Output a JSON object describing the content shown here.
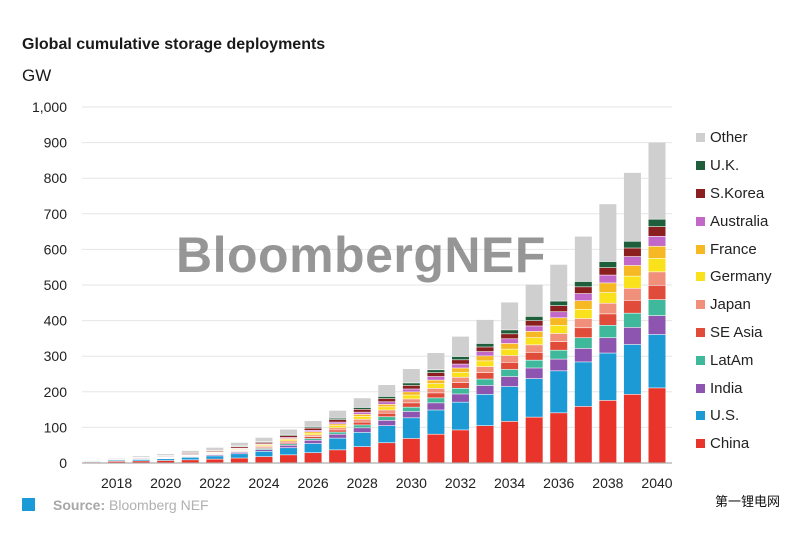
{
  "title": "Global cumulative storage deployments",
  "unit": "GW",
  "watermark": "BloombergNEF",
  "source": {
    "label": "Source:",
    "text": "Bloomberg NEF"
  },
  "footer_mark": "第一锂电网",
  "chart_data": {
    "type": "bar",
    "stacked": true,
    "title": "Global cumulative storage deployments",
    "ylabel": "GW",
    "xlabel": "",
    "ylim": [
      0,
      1000
    ],
    "yticks": [
      0,
      100,
      200,
      300,
      400,
      500,
      600,
      700,
      800,
      900,
      1000
    ],
    "ytick_labels": [
      "0",
      "100",
      "200",
      "300",
      "400",
      "500",
      "600",
      "700",
      "800",
      "900",
      "1,000"
    ],
    "xtick_labels": [
      "2018",
      "2020",
      "2022",
      "2024",
      "2026",
      "2028",
      "2030",
      "2032",
      "2034",
      "2036",
      "2038",
      "2040"
    ],
    "categories": [
      "2017",
      "2018",
      "2019",
      "2020",
      "2021",
      "2022",
      "2023",
      "2024",
      "2025",
      "2026",
      "2027",
      "2028",
      "2029",
      "2030",
      "2031",
      "2032",
      "2033",
      "2034",
      "2035",
      "2036",
      "2037",
      "2038",
      "2039",
      "2040"
    ],
    "grid": "horizontal",
    "legend_position": "right",
    "series": [
      {
        "name": "China",
        "color": "#e8342a",
        "values": [
          2,
          4,
          5,
          6,
          8,
          10,
          13,
          17,
          22,
          28,
          36,
          45,
          56,
          68,
          80,
          92,
          104,
          116,
          128,
          140,
          158,
          175,
          192,
          210
        ]
      },
      {
        "name": "U.S.",
        "color": "#1b9ad6",
        "values": [
          2,
          3,
          4,
          5,
          7,
          9,
          12,
          15,
          20,
          26,
          33,
          40,
          48,
          58,
          68,
          78,
          88,
          98,
          108,
          118,
          125,
          133,
          140,
          150
        ]
      },
      {
        "name": "India",
        "color": "#8d55b0",
        "values": [
          0,
          0,
          1,
          1,
          2,
          3,
          4,
          5,
          7,
          9,
          11,
          13,
          15,
          18,
          20,
          23,
          25,
          28,
          30,
          33,
          38,
          43,
          48,
          53
        ]
      },
      {
        "name": "LatAm",
        "color": "#3fb89b",
        "values": [
          0,
          0,
          0,
          1,
          1,
          2,
          2,
          3,
          4,
          5,
          6,
          8,
          10,
          12,
          14,
          16,
          18,
          20,
          22,
          25,
          30,
          35,
          40,
          45
        ]
      },
      {
        "name": "SE Asia",
        "color": "#e14b3a",
        "values": [
          0,
          0,
          0,
          0,
          1,
          1,
          2,
          3,
          4,
          5,
          6,
          8,
          10,
          12,
          14,
          16,
          18,
          20,
          22,
          24,
          28,
          32,
          36,
          40
        ]
      },
      {
        "name": "Japan",
        "color": "#f0907a",
        "values": [
          0,
          1,
          1,
          1,
          1,
          2,
          2,
          3,
          4,
          5,
          6,
          8,
          9,
          11,
          13,
          15,
          17,
          19,
          21,
          23,
          26,
          30,
          34,
          38
        ]
      },
      {
        "name": "Germany",
        "color": "#f9e21b",
        "values": [
          0,
          0,
          1,
          1,
          1,
          2,
          2,
          3,
          4,
          5,
          6,
          8,
          9,
          11,
          13,
          14,
          16,
          18,
          20,
          23,
          26,
          30,
          34,
          38
        ]
      },
      {
        "name": "France",
        "color": "#f6b823",
        "values": [
          0,
          0,
          0,
          1,
          1,
          1,
          2,
          2,
          3,
          4,
          5,
          6,
          7,
          9,
          10,
          12,
          14,
          16,
          18,
          21,
          24,
          27,
          30,
          34
        ]
      },
      {
        "name": "Australia",
        "color": "#c168c8",
        "values": [
          0,
          0,
          0,
          1,
          1,
          1,
          2,
          2,
          3,
          4,
          5,
          6,
          7,
          8,
          10,
          11,
          12,
          13,
          15,
          17,
          20,
          22,
          25,
          28
        ]
      },
      {
        "name": "S.Korea",
        "color": "#8b1f1f",
        "values": [
          1,
          1,
          2,
          2,
          3,
          3,
          4,
          4,
          5,
          6,
          7,
          8,
          9,
          10,
          11,
          12,
          13,
          14,
          15,
          17,
          19,
          21,
          24,
          27
        ]
      },
      {
        "name": "U.K.",
        "color": "#1f5e3a",
        "values": [
          0,
          0,
          1,
          1,
          1,
          1,
          2,
          2,
          3,
          3,
          4,
          5,
          6,
          7,
          8,
          9,
          10,
          11,
          12,
          13,
          15,
          17,
          19,
          21
        ]
      },
      {
        "name": "Other",
        "color": "#cfcfcf",
        "values": [
          2,
          3,
          4,
          5,
          7,
          8,
          10,
          12,
          15,
          18,
          22,
          27,
          33,
          40,
          48,
          57,
          67,
          78,
          90,
          103,
          127,
          162,
          193,
          216
        ]
      }
    ]
  }
}
